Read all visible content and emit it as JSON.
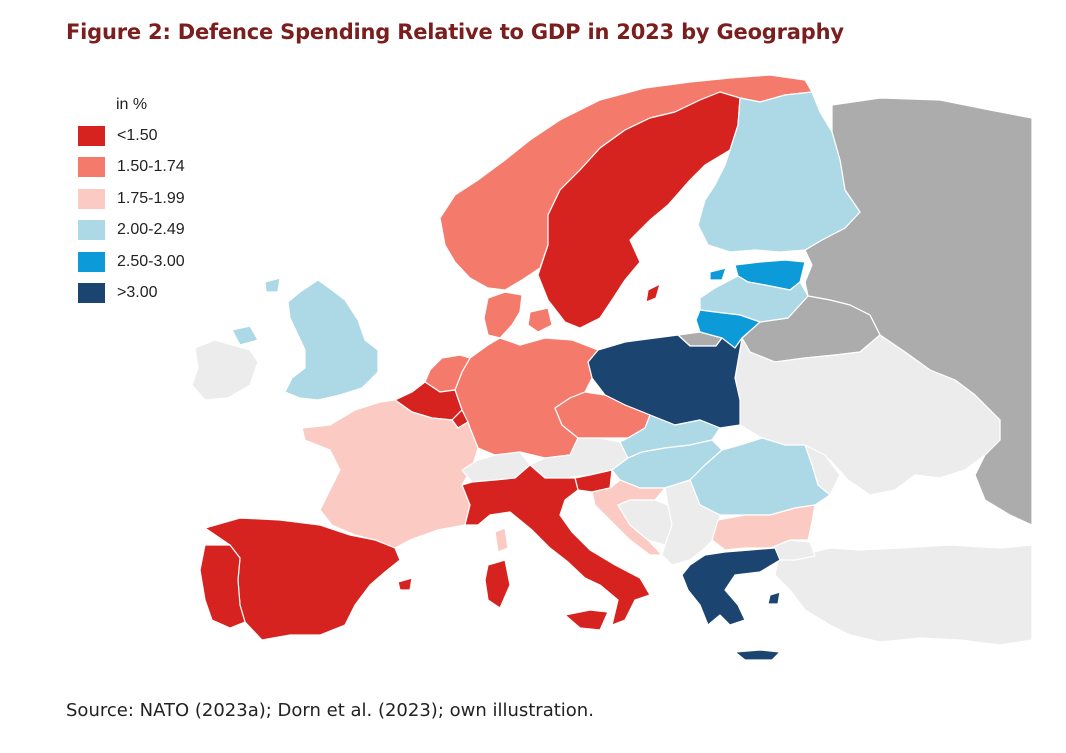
{
  "title": "Figure 2: Defence Spending Relative to GDP in 2023 by Geography",
  "source": "Source: NATO (2023a); Dorn et al. (2023); own illustration.",
  "legend": {
    "title": "in %",
    "items": [
      {
        "label": "<1.50",
        "color": "#d7231f"
      },
      {
        "label": "1.50-1.74",
        "color": "#f47b6b"
      },
      {
        "label": "1.75-1.99",
        "color": "#fbcbc3"
      },
      {
        "label": "2.00-2.49",
        "color": "#add8e6"
      },
      {
        "label": "2.50-3.00",
        "color": "#0d9ad9"
      },
      {
        "label": ">3.00",
        "color": "#1b4570"
      }
    ]
  },
  "colors": {
    "non_member": "#ececec",
    "russia_belarus": "#acacac",
    "title": "#7a1e1e"
  },
  "regions": [
    {
      "name": "Norway",
      "category": "1.50-1.74"
    },
    {
      "name": "Sweden",
      "category": "<1.50"
    },
    {
      "name": "Finland",
      "category": "2.00-2.49"
    },
    {
      "name": "Estonia",
      "category": "2.50-3.00"
    },
    {
      "name": "Latvia",
      "category": "2.00-2.49"
    },
    {
      "name": "Lithuania",
      "category": "2.50-3.00"
    },
    {
      "name": "Poland",
      "category": ">3.00"
    },
    {
      "name": "Denmark",
      "category": "1.50-1.74"
    },
    {
      "name": "Germany",
      "category": "1.50-1.74"
    },
    {
      "name": "Netherlands",
      "category": "1.50-1.74"
    },
    {
      "name": "Belgium",
      "category": "<1.50"
    },
    {
      "name": "Luxembourg",
      "category": "<1.50"
    },
    {
      "name": "France",
      "category": "1.75-1.99"
    },
    {
      "name": "Spain",
      "category": "<1.50"
    },
    {
      "name": "Portugal",
      "category": "<1.50"
    },
    {
      "name": "Italy",
      "category": "<1.50"
    },
    {
      "name": "Slovenia",
      "category": "<1.50"
    },
    {
      "name": "Czechia",
      "category": "1.50-1.74"
    },
    {
      "name": "Slovakia",
      "category": "2.00-2.49"
    },
    {
      "name": "Hungary",
      "category": "2.00-2.49"
    },
    {
      "name": "Romania",
      "category": "2.00-2.49"
    },
    {
      "name": "Bulgaria",
      "category": "1.75-1.99"
    },
    {
      "name": "Croatia",
      "category": "1.75-1.99"
    },
    {
      "name": "Greece",
      "category": ">3.00"
    },
    {
      "name": "United Kingdom",
      "category": "2.00-2.49"
    },
    {
      "name": "Ireland",
      "category": "non-member"
    },
    {
      "name": "Switzerland",
      "category": "non-member"
    },
    {
      "name": "Austria",
      "category": "non-member"
    },
    {
      "name": "Belarus",
      "category": "russia-belarus"
    },
    {
      "name": "Russia",
      "category": "russia-belarus"
    },
    {
      "name": "Ukraine",
      "category": "non-member"
    },
    {
      "name": "Moldova",
      "category": "non-member"
    },
    {
      "name": "Serbia",
      "category": "non-member"
    },
    {
      "name": "Bosnia and Herzegovina",
      "category": "non-member"
    },
    {
      "name": "Turkey",
      "category": "non-member"
    }
  ]
}
